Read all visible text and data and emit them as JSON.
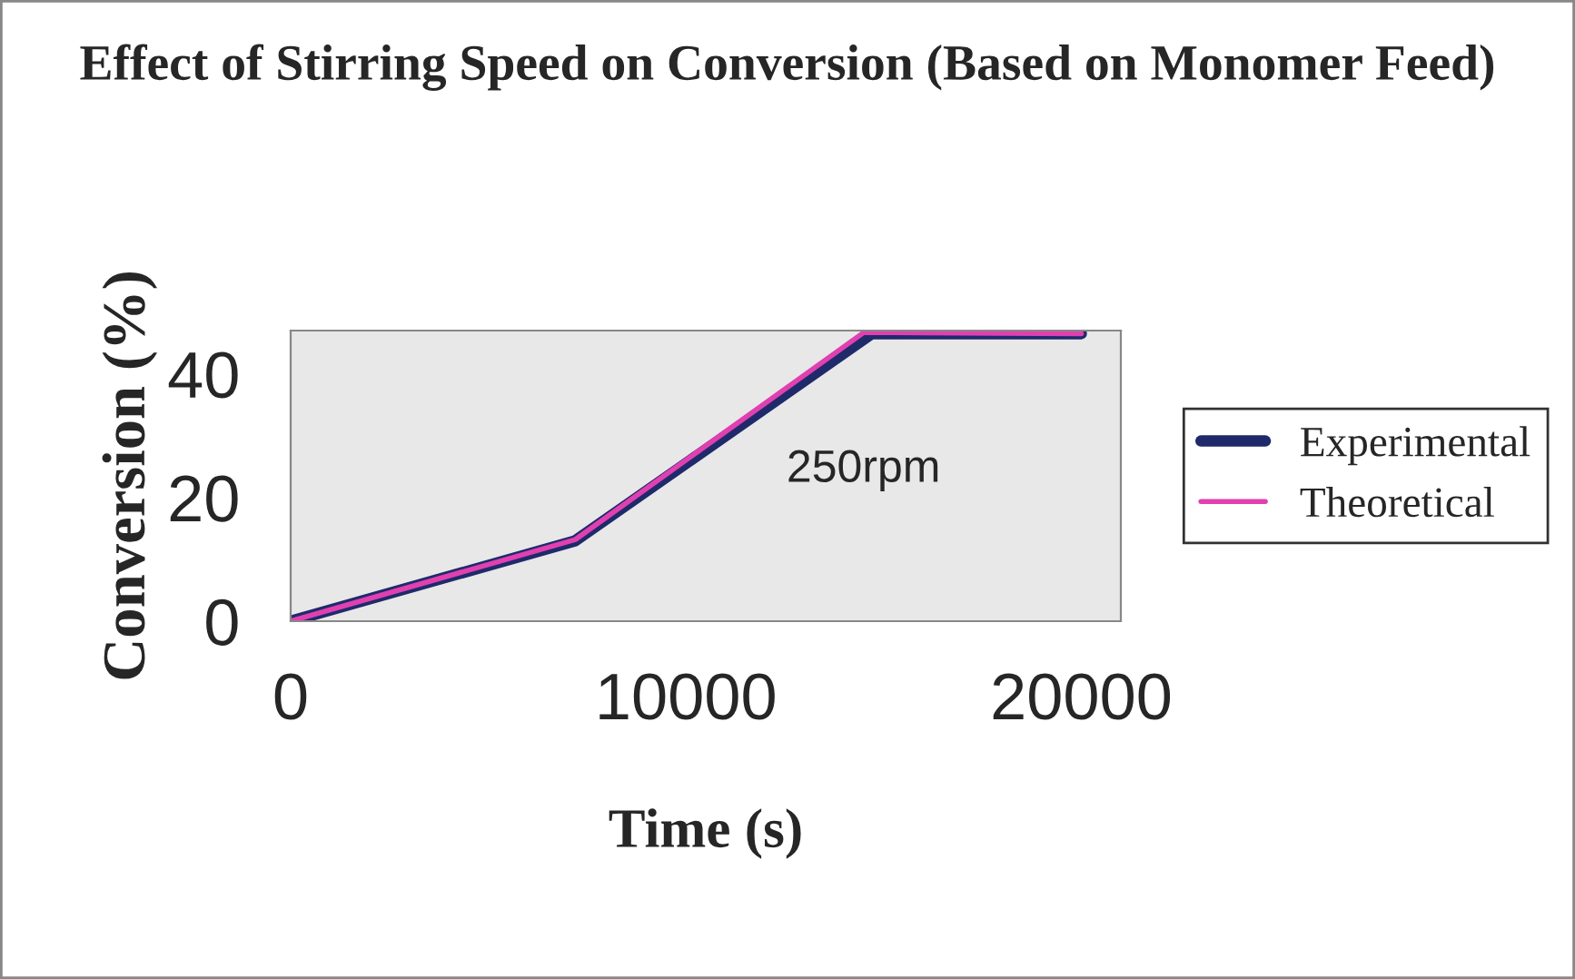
{
  "chart_data": {
    "type": "line",
    "title": "Effect of Stirring Speed on Conversion (Based on Monomer Feed)",
    "xlabel": "Time (s)",
    "ylabel": "Conversion (%)",
    "xlim": [
      0,
      21000
    ],
    "xticks": [
      0,
      10000,
      20000
    ],
    "ylim": [
      0,
      47
    ],
    "yticks": [
      0,
      20,
      40
    ],
    "grid": false,
    "legend": "right",
    "series": [
      {
        "name": "Experimental",
        "color": "#1f2a6b",
        "x": [
          0,
          7200,
          14700,
          20000
        ],
        "values": [
          0,
          13,
          46.5,
          46.5
        ]
      },
      {
        "name": "Theoretical",
        "color": "#e040b0",
        "x": [
          0,
          7200,
          14500,
          20000
        ],
        "values": [
          0,
          13.2,
          46.7,
          46.5
        ]
      }
    ],
    "annotations": [
      "250rpm"
    ]
  }
}
